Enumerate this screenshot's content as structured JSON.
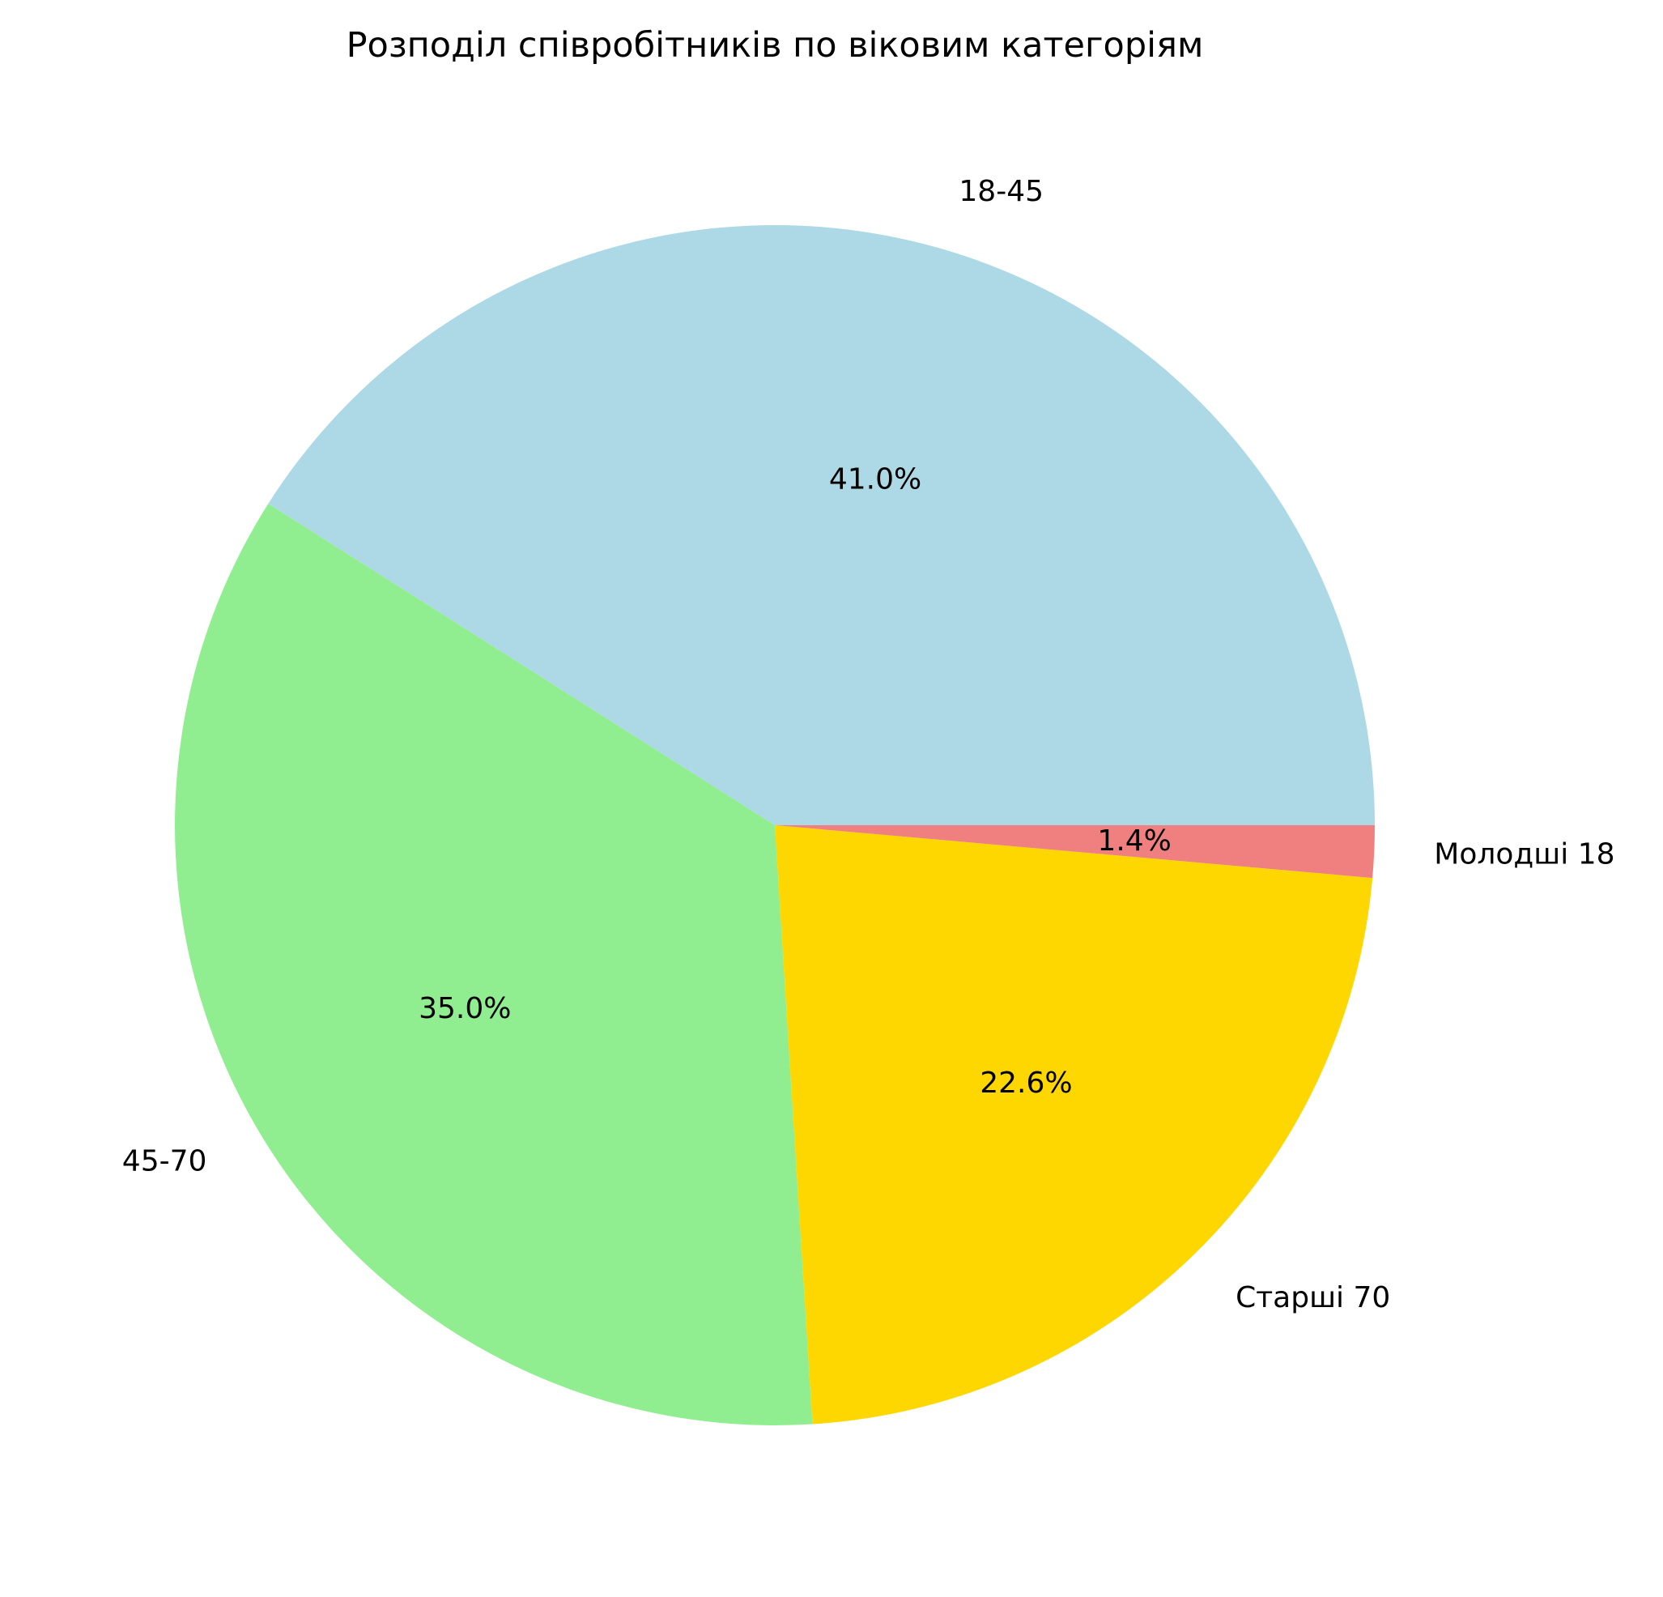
{
  "chart_data": {
    "type": "pie",
    "title": "Розподіл співробітників по віковим категоріям",
    "start_angle_deg": 0,
    "direction": "counterclockwise",
    "slices": [
      {
        "label": "18-45",
        "value": 41.0,
        "pct_label": "41.0%",
        "color": "#ADD8E6"
      },
      {
        "label": "45-70",
        "value": 35.0,
        "pct_label": "35.0%",
        "color": "#90EE90"
      },
      {
        "label": "Старші 70",
        "value": 22.6,
        "pct_label": "22.6%",
        "color": "#FFD700"
      },
      {
        "label": "Молодші 18",
        "value": 1.4,
        "pct_label": "1.4%",
        "color": "#F08080"
      }
    ]
  }
}
